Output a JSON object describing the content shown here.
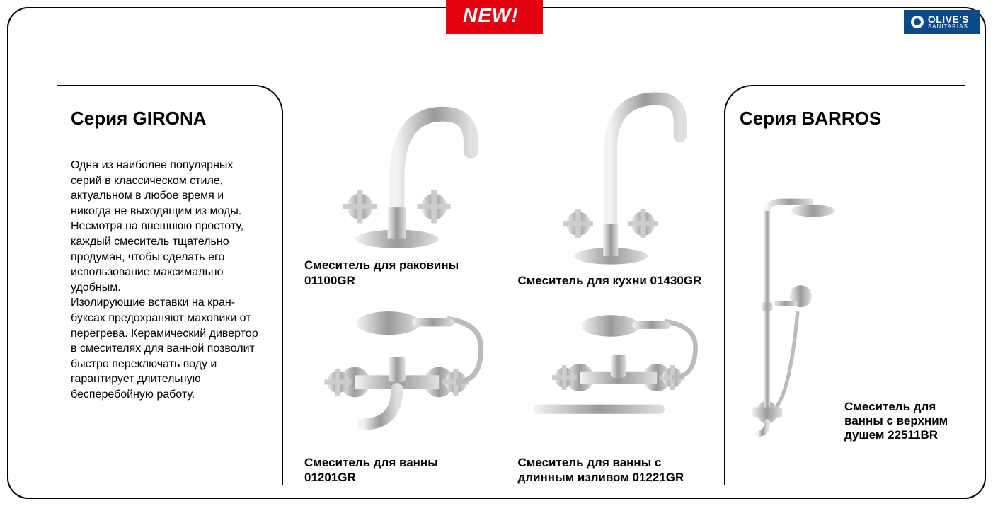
{
  "badge_new": "NEW!",
  "brand": {
    "line1": "OLIVE'S",
    "line2": "SANITARIAS"
  },
  "colors": {
    "badge_bg": "#e3000f",
    "brand_bg": "#0a4a8a",
    "border": "#000000",
    "text": "#000000",
    "chrome_light": "#e8e8e8",
    "chrome_mid": "#bcbcbc",
    "chrome_dark": "#6f6f6f"
  },
  "left": {
    "title": "Серия GIRONA",
    "description": "Одна из наиболее популярных серий в классическом стиле, актуальном в любое время и никогда не выходящим из моды. Несмотря на внешнюю простоту, каждый смеситель тщательно продуман, чтобы сделать его использование максимально удобным.\nИзолирующие вставки на кран-буксах предохраняют маховики от перегрева. Керамический дивертор в смесителях для ванной позволит быстро переключать воду и гарантирует длительную бесперебойную работу."
  },
  "products": [
    {
      "label": "Смеситель для раковины 01100GR",
      "type": "basin-faucet"
    },
    {
      "label": "Смеситель для кухни 01430GR",
      "type": "kitchen-faucet"
    },
    {
      "label": "Смеситель для ванны 01201GR",
      "type": "bath-faucet"
    },
    {
      "label": "Смеситель для ванны с длинным изливом 01221GR",
      "type": "bath-faucet-long"
    }
  ],
  "right": {
    "title": "Серия BARROS",
    "label": "Смеситель для ванны с верхним душем 22511BR",
    "type": "shower-column"
  }
}
